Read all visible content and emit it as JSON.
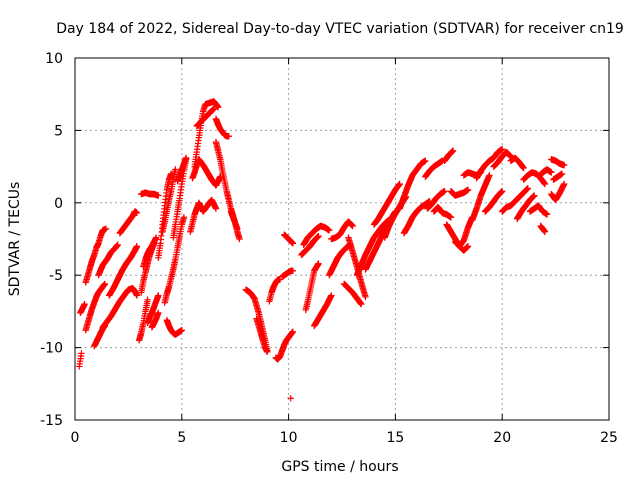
{
  "chart_data": {
    "type": "scatter",
    "title": "Day 184 of 2022, Sidereal Day-to-day VTEC variation (SDTVAR) for receiver cn19",
    "xlabel": "GPS time / hours",
    "ylabel": "SDTVAR / TECUs",
    "xlim": [
      0,
      25
    ],
    "ylim": [
      -15,
      10
    ],
    "xticks": [
      0,
      5,
      10,
      15,
      20,
      25
    ],
    "yticks": [
      -15,
      -10,
      -5,
      0,
      5,
      10
    ],
    "grid": true,
    "marker": "+",
    "series_color": "#ff0000",
    "segments": [
      {
        "x": [
          0.2,
          0.3
        ],
        "y": [
          -11.3,
          -10.4
        ]
      },
      {
        "x": [
          0.25,
          0.45
        ],
        "y": [
          -7.6,
          -7.0
        ]
      },
      {
        "x": [
          0.5,
          0.6,
          0.7,
          0.8,
          0.9,
          1.0,
          1.1,
          1.2,
          1.3,
          1.45
        ],
        "y": [
          -5.5,
          -5.0,
          -4.5,
          -4.0,
          -3.6,
          -3.1,
          -2.8,
          -2.3,
          -1.9,
          -1.8
        ]
      },
      {
        "x": [
          0.5,
          0.6,
          0.7,
          0.8,
          0.9,
          1.0,
          1.1,
          1.2,
          1.3,
          1.4
        ],
        "y": [
          -8.8,
          -8.3,
          -7.8,
          -7.3,
          -6.9,
          -6.5,
          -6.2,
          -6.0,
          -5.8,
          -5.6
        ]
      },
      {
        "x": [
          0.9,
          1.0,
          1.1,
          1.2,
          1.3,
          1.4
        ],
        "y": [
          -9.9,
          -9.6,
          -9.3,
          -9.0,
          -8.7,
          -8.5
        ]
      },
      {
        "x": [
          1.1,
          1.3,
          1.5,
          1.7,
          1.9,
          2.0
        ],
        "y": [
          -5.0,
          -4.3,
          -3.9,
          -3.4,
          -3.1,
          -2.9
        ]
      },
      {
        "x": [
          1.3,
          1.5,
          1.7,
          1.9,
          2.1,
          2.3,
          2.5,
          2.7,
          2.8,
          2.9
        ],
        "y": [
          -8.6,
          -8.2,
          -7.8,
          -7.3,
          -6.8,
          -6.4,
          -6.0,
          -5.9,
          -6.1,
          -6.4
        ]
      },
      {
        "x": [
          1.6,
          1.8,
          2.0,
          2.2,
          2.4,
          2.6,
          2.8,
          2.9
        ],
        "y": [
          -6.4,
          -5.9,
          -5.3,
          -4.7,
          -4.2,
          -3.8,
          -3.3,
          -3.0
        ]
      },
      {
        "x": [
          2.1,
          2.3,
          2.5,
          2.7,
          2.8,
          2.9
        ],
        "y": [
          -2.1,
          -1.7,
          -1.3,
          -0.9,
          -0.6,
          -0.7
        ]
      },
      {
        "x": [
          3.0,
          3.1,
          3.2,
          3.3,
          3.4
        ],
        "y": [
          -9.5,
          -9.0,
          -8.3,
          -7.5,
          -6.7
        ]
      },
      {
        "x": [
          3.1,
          3.2,
          3.3,
          3.4,
          3.5,
          3.6,
          3.7
        ],
        "y": [
          -6.2,
          -5.4,
          -4.8,
          -4.2,
          -3.6,
          -3.2,
          -2.8
        ]
      },
      {
        "x": [
          3.2,
          3.3,
          3.4,
          3.5,
          3.6,
          3.7,
          3.8
        ],
        "y": [
          -4.4,
          -3.9,
          -3.5,
          -3.2,
          -3.0,
          -2.7,
          -2.4
        ]
      },
      {
        "x": [
          3.4,
          3.5,
          3.6,
          3.7,
          3.8,
          3.9
        ],
        "y": [
          -8.3,
          -7.9,
          -7.6,
          -7.2,
          -6.8,
          -6.4
        ]
      },
      {
        "x": [
          3.6,
          3.7,
          3.8,
          3.9
        ],
        "y": [
          -8.6,
          -8.3,
          -8.0,
          -7.6
        ]
      },
      {
        "x": [
          3.1,
          3.3,
          3.5,
          3.7,
          3.9
        ],
        "y": [
          0.6,
          0.7,
          0.6,
          0.6,
          0.5
        ]
      },
      {
        "x": [
          3.9,
          4.0,
          4.1,
          4.2,
          4.3,
          4.4,
          4.5
        ],
        "y": [
          -3.8,
          -2.8,
          -1.5,
          -0.2,
          0.9,
          1.6,
          2.0
        ]
      },
      {
        "x": [
          4.1,
          4.2,
          4.3,
          4.4,
          4.5,
          4.6,
          4.7
        ],
        "y": [
          -2.0,
          -1.3,
          -0.6,
          0.2,
          0.8,
          1.6,
          2.3
        ]
      },
      {
        "x": [
          4.2,
          4.3,
          4.4,
          4.5,
          4.6,
          4.7,
          4.8,
          4.9,
          5.0,
          5.1
        ],
        "y": [
          -6.9,
          -6.3,
          -5.8,
          -5.2,
          -4.6,
          -3.9,
          -3.1,
          -2.3,
          -1.5,
          -1.0
        ]
      },
      {
        "x": [
          4.3,
          4.4,
          4.5,
          4.6,
          4.7,
          4.8,
          4.9,
          5.0
        ],
        "y": [
          -8.1,
          -8.5,
          -8.8,
          -9.0,
          -9.1,
          -9.0,
          -8.9,
          -8.8
        ]
      },
      {
        "x": [
          4.6,
          4.7,
          4.8,
          4.9,
          5.0,
          5.1,
          5.2
        ],
        "y": [
          -2.4,
          -1.5,
          -0.6,
          0.3,
          1.3,
          2.2,
          3.0
        ]
      },
      {
        "x": [
          4.8,
          4.9,
          5.0,
          5.1,
          5.2
        ],
        "y": [
          1.5,
          1.9,
          2.3,
          2.7,
          3.1
        ]
      },
      {
        "x": [
          5.4,
          5.5,
          5.6,
          5.7,
          5.8,
          5.9,
          6.0,
          6.2,
          6.4,
          6.6
        ],
        "y": [
          -2.0,
          -1.4,
          -0.8,
          -0.4,
          0.0,
          -0.3,
          -0.6,
          -0.2,
          0.2,
          -0.4
        ]
      },
      {
        "x": [
          5.5,
          5.6,
          5.7,
          5.8,
          5.9,
          6.0,
          6.2,
          6.4,
          6.6,
          6.8
        ],
        "y": [
          1.7,
          2.1,
          2.6,
          3.0,
          2.8,
          2.6,
          2.1,
          1.6,
          1.2,
          1.8
        ]
      },
      {
        "x": [
          5.6,
          5.7,
          5.8,
          5.9,
          6.0,
          6.1,
          6.3,
          6.5,
          6.7
        ],
        "y": [
          2.5,
          3.5,
          4.5,
          5.5,
          6.3,
          6.8,
          6.9,
          7.0,
          6.6
        ]
      },
      {
        "x": [
          5.7,
          5.9,
          6.1,
          6.3,
          6.5
        ],
        "y": [
          5.3,
          5.6,
          5.9,
          6.2,
          6.5
        ]
      },
      {
        "x": [
          6.6,
          6.7,
          6.8,
          6.9,
          7.0,
          7.1,
          7.2
        ],
        "y": [
          5.8,
          5.4,
          5.1,
          4.9,
          4.7,
          4.6,
          4.6
        ]
      },
      {
        "x": [
          6.6,
          6.7,
          6.8,
          6.9,
          7.0,
          7.1,
          7.2,
          7.3,
          7.4,
          7.5,
          7.6,
          7.7
        ],
        "y": [
          4.2,
          3.6,
          3.0,
          2.2,
          1.5,
          0.8,
          0.2,
          -0.4,
          -0.9,
          -1.4,
          -2.0,
          -2.5
        ]
      },
      {
        "x": [
          7.3,
          7.4,
          7.5,
          7.6
        ],
        "y": [
          -0.6,
          -1.0,
          -1.4,
          -1.8
        ]
      },
      {
        "x": [
          8.0,
          8.2,
          8.4,
          8.5,
          8.6,
          8.7,
          8.8,
          8.9,
          9.0
        ],
        "y": [
          -6.0,
          -6.2,
          -6.6,
          -7.1,
          -7.6,
          -8.2,
          -8.9,
          -9.5,
          -10.2
        ]
      },
      {
        "x": [
          8.5,
          8.6,
          8.7,
          8.8,
          8.9,
          9.0
        ],
        "y": [
          -8.0,
          -8.5,
          -9.0,
          -9.5,
          -10.0,
          -10.3
        ]
      },
      {
        "x": [
          9.1,
          9.2,
          9.3,
          9.4,
          9.5,
          9.6
        ],
        "y": [
          -6.8,
          -6.2,
          -5.8,
          -5.5,
          -5.3,
          -5.3
        ]
      },
      {
        "x": [
          9.4,
          9.5,
          9.6,
          9.7,
          9.8,
          9.9,
          10.0,
          10.1,
          10.2
        ],
        "y": [
          -10.7,
          -10.8,
          -10.6,
          -10.2,
          -9.8,
          -9.5,
          -9.3,
          -9.1,
          -8.9
        ]
      },
      {
        "x": [
          9.7,
          9.8,
          9.9,
          10.0,
          10.1,
          10.2
        ],
        "y": [
          -5.1,
          -5.0,
          -4.9,
          -4.8,
          -4.7,
          -4.7
        ]
      },
      {
        "x": [
          9.8,
          10.0,
          10.2
        ],
        "y": [
          -2.2,
          -2.5,
          -2.8
        ]
      },
      {
        "x": [
          10.1
        ],
        "y": [
          -13.5
        ]
      },
      {
        "x": [
          10.6,
          10.8,
          11.0,
          11.2,
          11.4
        ],
        "y": [
          -3.6,
          -3.3,
          -3.0,
          -2.6,
          -2.3
        ]
      },
      {
        "x": [
          10.7,
          10.9,
          11.1,
          11.3,
          11.5,
          11.7,
          11.9
        ],
        "y": [
          -2.9,
          -2.4,
          -2.1,
          -1.8,
          -1.6,
          -1.7,
          -1.9
        ]
      },
      {
        "x": [
          10.8,
          10.9,
          11.0,
          11.1,
          11.2,
          11.4
        ],
        "y": [
          -7.4,
          -6.8,
          -6.1,
          -5.4,
          -4.7,
          -4.2
        ]
      },
      {
        "x": [
          11.2,
          11.4,
          11.6,
          11.8,
          12.0
        ],
        "y": [
          -8.5,
          -8.0,
          -7.5,
          -7.0,
          -6.4
        ]
      },
      {
        "x": [
          11.9,
          12.1,
          12.3,
          12.5,
          12.7,
          12.9
        ],
        "y": [
          -5.0,
          -4.4,
          -3.8,
          -3.4,
          -3.1,
          -2.9
        ]
      },
      {
        "x": [
          12.0,
          12.2,
          12.4,
          12.6,
          12.8,
          13.0
        ],
        "y": [
          -2.5,
          -2.4,
          -2.2,
          -1.7,
          -1.3,
          -1.6
        ]
      },
      {
        "x": [
          12.6,
          12.8,
          13.0,
          13.2,
          13.4
        ],
        "y": [
          -5.6,
          -5.9,
          -6.2,
          -6.6,
          -7.0
        ]
      },
      {
        "x": [
          12.8,
          13.0,
          13.2,
          13.4,
          13.6
        ],
        "y": [
          -2.4,
          -3.4,
          -4.4,
          -5.5,
          -6.5
        ]
      },
      {
        "x": [
          13.2,
          13.4,
          13.6,
          13.8,
          14.0,
          14.2,
          14.4,
          14.6,
          14.8
        ],
        "y": [
          -5.0,
          -4.3,
          -3.6,
          -3.0,
          -2.4,
          -2.0,
          -1.6,
          -1.3,
          -1.1
        ]
      },
      {
        "x": [
          13.6,
          13.8,
          14.0,
          14.2,
          14.4,
          14.6,
          14.8,
          15.0
        ],
        "y": [
          -4.6,
          -4.0,
          -3.4,
          -2.8,
          -2.2,
          -1.6,
          -1.1,
          -0.6
        ]
      },
      {
        "x": [
          14.0,
          14.2,
          14.4,
          14.6,
          14.8,
          15.0,
          15.2
        ],
        "y": [
          -1.5,
          -1.1,
          -0.6,
          -0.1,
          0.4,
          0.9,
          1.3
        ]
      },
      {
        "x": [
          14.5,
          14.7,
          14.9,
          15.1,
          15.3,
          15.5
        ],
        "y": [
          -2.4,
          -1.6,
          -1.0,
          -0.5,
          0.0,
          0.4
        ]
      },
      {
        "x": [
          15.2,
          15.4,
          15.6,
          15.8,
          16.0,
          16.2,
          16.4
        ],
        "y": [
          -0.4,
          0.4,
          1.2,
          1.9,
          2.3,
          2.7,
          2.9
        ]
      },
      {
        "x": [
          15.4,
          15.6,
          15.8,
          16.0,
          16.2,
          16.4,
          16.6
        ],
        "y": [
          -2.1,
          -1.6,
          -1.0,
          -0.6,
          -0.3,
          -0.1,
          0.1
        ]
      },
      {
        "x": [
          16.4,
          16.6,
          16.8,
          17.0,
          17.2
        ],
        "y": [
          1.8,
          2.2,
          2.5,
          2.7,
          2.9
        ]
      },
      {
        "x": [
          16.5,
          16.7,
          16.9,
          17.1,
          17.3
        ],
        "y": [
          -0.4,
          -0.1,
          0.3,
          0.6,
          0.8
        ]
      },
      {
        "x": [
          16.8,
          17.0,
          17.2,
          17.4,
          17.6
        ],
        "y": [
          -0.6,
          -0.3,
          -0.7,
          -0.8,
          -1.0
        ]
      },
      {
        "x": [
          17.3,
          17.5,
          17.7
        ],
        "y": [
          2.9,
          3.3,
          3.6
        ]
      },
      {
        "x": [
          17.4,
          17.6,
          17.8,
          18.0,
          18.2,
          18.4
        ],
        "y": [
          -1.5,
          -2.0,
          -2.5,
          -3.0,
          -3.3,
          -3.0
        ]
      },
      {
        "x": [
          17.6,
          17.8,
          18.0,
          18.2,
          18.4
        ],
        "y": [
          0.8,
          0.5,
          0.6,
          0.7,
          0.9
        ]
      },
      {
        "x": [
          17.8,
          18.0,
          18.2,
          18.4,
          18.6
        ],
        "y": [
          -2.7,
          -3.0,
          -2.6,
          -1.7,
          -1.0
        ]
      },
      {
        "x": [
          18.2,
          18.4,
          18.6,
          18.8,
          19.0
        ],
        "y": [
          1.9,
          2.1,
          2.0,
          1.9,
          2.1
        ]
      },
      {
        "x": [
          18.6,
          18.8,
          19.0,
          19.2,
          19.4
        ],
        "y": [
          -1.2,
          -0.4,
          0.5,
          1.2,
          1.9
        ]
      },
      {
        "x": [
          18.8,
          19.0,
          19.2,
          19.4,
          19.6,
          19.8,
          20.0
        ],
        "y": [
          1.7,
          2.2,
          2.6,
          2.9,
          3.1,
          3.5,
          3.7
        ]
      },
      {
        "x": [
          19.2,
          19.4,
          19.6,
          19.8,
          20.0
        ],
        "y": [
          -0.6,
          -0.3,
          0.1,
          0.5,
          0.8
        ]
      },
      {
        "x": [
          19.6,
          19.8,
          20.0,
          20.2,
          20.4
        ],
        "y": [
          2.5,
          2.8,
          3.2,
          3.5,
          3.2
        ]
      },
      {
        "x": [
          20.0,
          20.2,
          20.4,
          20.6,
          20.8,
          21.0,
          21.2
        ],
        "y": [
          -0.6,
          -0.3,
          -0.2,
          0.1,
          0.4,
          0.7,
          1.0
        ]
      },
      {
        "x": [
          20.4,
          20.6,
          20.8,
          21.0
        ],
        "y": [
          2.9,
          3.1,
          2.8,
          2.4
        ]
      },
      {
        "x": [
          20.7,
          20.9,
          21.1,
          21.3,
          21.5
        ],
        "y": [
          -1.1,
          -0.6,
          -0.2,
          0.2,
          0.5
        ]
      },
      {
        "x": [
          21.0,
          21.2,
          21.4,
          21.6,
          21.8,
          22.0
        ],
        "y": [
          1.6,
          1.9,
          2.1,
          2.0,
          1.7,
          1.3
        ]
      },
      {
        "x": [
          21.3,
          21.5,
          21.7,
          21.9,
          22.1
        ],
        "y": [
          -0.6,
          -0.4,
          -0.2,
          -0.6,
          -0.8
        ]
      },
      {
        "x": [
          21.7,
          21.9,
          22.1,
          22.3
        ],
        "y": [
          1.8,
          2.1,
          2.3,
          2.1
        ]
      },
      {
        "x": [
          21.8,
          21.9,
          22.0
        ],
        "y": [
          -1.6,
          -1.8,
          -2.0
        ]
      },
      {
        "x": [
          22.3,
          22.5,
          22.7,
          22.9
        ],
        "y": [
          3.0,
          2.9,
          2.7,
          2.6
        ]
      },
      {
        "x": [
          22.3,
          22.5,
          22.7,
          22.9
        ],
        "y": [
          0.6,
          0.2,
          0.7,
          1.3
        ]
      },
      {
        "x": [
          22.4,
          22.6,
          22.8
        ],
        "y": [
          1.6,
          1.8,
          2.0
        ]
      }
    ]
  }
}
